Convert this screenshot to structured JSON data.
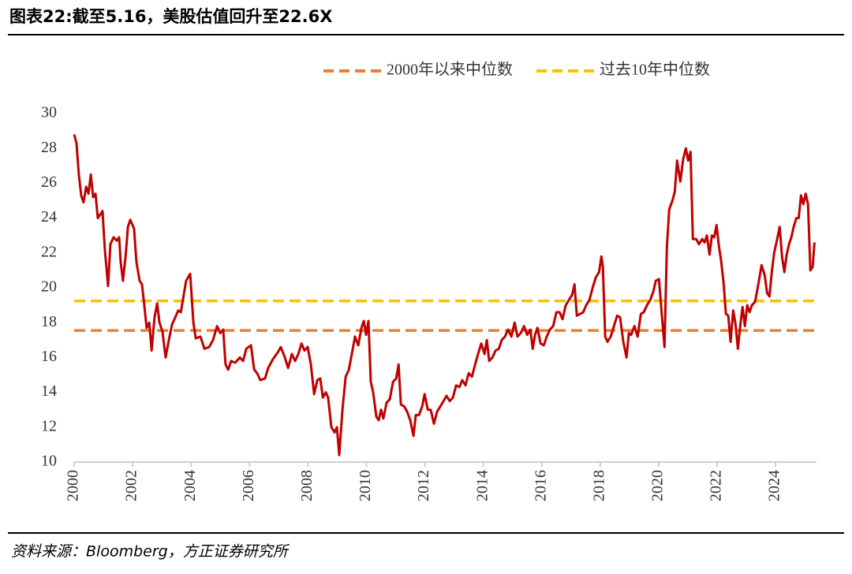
{
  "chart_data": {
    "type": "line",
    "title": "图表22:截至5.16，美股估值回升至22.6X",
    "source": "资料来源：Bloomberg，方正证券研究所",
    "x": [
      2000.0,
      2000.08,
      2000.16,
      2000.24,
      2000.32,
      2000.41,
      2000.49,
      2000.57,
      2000.65,
      2000.73,
      2000.81,
      2000.97,
      2001.05,
      2001.16,
      2001.24,
      2001.35,
      2001.46,
      2001.54,
      2001.59,
      2001.67,
      2001.76,
      2001.84,
      2001.92,
      2002.05,
      2002.13,
      2002.24,
      2002.32,
      2002.4,
      2002.48,
      2002.57,
      2002.65,
      2002.75,
      2002.84,
      2002.92,
      2003.02,
      2003.13,
      2003.24,
      2003.35,
      2003.46,
      2003.56,
      2003.65,
      2003.73,
      2003.83,
      2003.97,
      2004.08,
      2004.16,
      2004.32,
      2004.46,
      2004.62,
      2004.75,
      2004.89,
      2005.0,
      2005.1,
      2005.18,
      2005.27,
      2005.37,
      2005.51,
      2005.67,
      2005.78,
      2005.89,
      2006.05,
      2006.16,
      2006.26,
      2006.37,
      2006.53,
      2006.64,
      2006.8,
      2006.97,
      2007.07,
      2007.21,
      2007.32,
      2007.45,
      2007.56,
      2007.67,
      2007.78,
      2007.88,
      2007.99,
      2008.1,
      2008.21,
      2008.32,
      2008.42,
      2008.51,
      2008.61,
      2008.69,
      2008.8,
      2008.91,
      2008.99,
      2009.07,
      2009.18,
      2009.29,
      2009.4,
      2009.5,
      2009.61,
      2009.72,
      2009.83,
      2009.91,
      2009.99,
      2010.07,
      2010.15,
      2010.23,
      2010.34,
      2010.42,
      2010.5,
      2010.58,
      2010.69,
      2010.8,
      2010.91,
      2011.02,
      2011.1,
      2011.18,
      2011.29,
      2011.39,
      2011.5,
      2011.61,
      2011.69,
      2011.8,
      2011.91,
      2011.99,
      2012.1,
      2012.2,
      2012.31,
      2012.42,
      2012.53,
      2012.64,
      2012.74,
      2012.85,
      2012.96,
      2013.07,
      2013.18,
      2013.28,
      2013.39,
      2013.5,
      2013.61,
      2013.72,
      2013.82,
      2013.93,
      2014.04,
      2014.12,
      2014.2,
      2014.31,
      2014.42,
      2014.53,
      2014.63,
      2014.74,
      2014.85,
      2014.96,
      2015.07,
      2015.17,
      2015.28,
      2015.39,
      2015.5,
      2015.61,
      2015.69,
      2015.77,
      2015.85,
      2015.96,
      2016.07,
      2016.17,
      2016.28,
      2016.39,
      2016.5,
      2016.61,
      2016.71,
      2016.82,
      2016.93,
      2017.04,
      2017.12,
      2017.2,
      2017.31,
      2017.42,
      2017.52,
      2017.63,
      2017.74,
      2017.85,
      2017.96,
      2018.04,
      2018.09,
      2018.17,
      2018.25,
      2018.36,
      2018.47,
      2018.58,
      2018.68,
      2018.79,
      2018.9,
      2018.98,
      2019.06,
      2019.17,
      2019.28,
      2019.39,
      2019.49,
      2019.6,
      2019.71,
      2019.82,
      2019.9,
      2020.01,
      2020.12,
      2020.2,
      2020.28,
      2020.36,
      2020.47,
      2020.55,
      2020.63,
      2020.74,
      2020.84,
      2020.93,
      2021.01,
      2021.09,
      2021.17,
      2021.28,
      2021.38,
      2021.49,
      2021.57,
      2021.65,
      2021.74,
      2021.82,
      2021.9,
      2021.98,
      2022.06,
      2022.14,
      2022.22,
      2022.3,
      2022.38,
      2022.46,
      2022.55,
      2022.63,
      2022.71,
      2022.79,
      2022.87,
      2022.95,
      2023.03,
      2023.11,
      2023.19,
      2023.3,
      2023.41,
      2023.52,
      2023.63,
      2023.71,
      2023.79,
      2023.87,
      2023.95,
      2024.03,
      2024.14,
      2024.22,
      2024.3,
      2024.38,
      2024.46,
      2024.54,
      2024.62,
      2024.71,
      2024.79,
      2024.87,
      2024.95,
      2025.03,
      2025.11,
      2025.19,
      2025.27,
      2025.33
    ],
    "series": [
      {
        "color": "#c00000",
        "values": [
          28.8,
          28.3,
          26.5,
          25.3,
          24.9,
          25.8,
          25.4,
          26.5,
          25.2,
          25.4,
          24.0,
          24.4,
          22.2,
          20.1,
          22.5,
          22.9,
          22.7,
          22.9,
          21.5,
          20.4,
          21.8,
          23.5,
          23.9,
          23.4,
          21.5,
          20.4,
          20.2,
          19.0,
          17.7,
          18.0,
          16.4,
          18.3,
          19.1,
          18.0,
          17.5,
          16.0,
          17.0,
          17.9,
          18.3,
          18.7,
          18.6,
          19.4,
          20.4,
          20.8,
          18.0,
          17.1,
          17.2,
          16.5,
          16.6,
          17.0,
          17.8,
          17.4,
          17.6,
          15.6,
          15.3,
          15.8,
          15.7,
          16.0,
          15.8,
          16.5,
          16.7,
          15.3,
          15.1,
          14.7,
          14.8,
          15.4,
          15.9,
          16.3,
          16.6,
          16.0,
          15.4,
          16.2,
          15.8,
          16.2,
          16.8,
          16.4,
          16.6,
          15.6,
          13.9,
          14.7,
          14.8,
          13.7,
          14.0,
          13.7,
          12.0,
          11.7,
          12.0,
          10.4,
          13.0,
          14.9,
          15.3,
          16.2,
          17.2,
          16.7,
          17.7,
          18.1,
          17.3,
          18.1,
          14.6,
          14.0,
          12.6,
          12.4,
          13.0,
          12.5,
          13.4,
          13.6,
          14.6,
          14.8,
          15.6,
          13.3,
          13.2,
          12.9,
          12.4,
          11.5,
          12.7,
          12.7,
          13.2,
          13.9,
          13.0,
          13.0,
          12.2,
          12.9,
          13.2,
          13.5,
          13.8,
          13.5,
          13.7,
          14.4,
          14.3,
          14.7,
          14.4,
          15.1,
          14.9,
          15.6,
          16.2,
          16.8,
          16.2,
          17.0,
          15.8,
          16.0,
          16.4,
          16.5,
          17.0,
          17.2,
          17.6,
          17.2,
          18.0,
          17.2,
          17.4,
          17.8,
          17.3,
          17.6,
          16.5,
          17.3,
          17.7,
          16.8,
          16.7,
          17.2,
          17.6,
          17.8,
          18.6,
          18.6,
          18.2,
          19.0,
          19.3,
          19.6,
          20.2,
          18.4,
          18.5,
          18.6,
          19.0,
          19.3,
          20.0,
          20.6,
          20.9,
          21.8,
          21.2,
          17.2,
          16.9,
          17.2,
          17.8,
          18.4,
          18.3,
          16.9,
          16.0,
          17.4,
          17.3,
          17.8,
          17.2,
          18.5,
          18.6,
          19.0,
          19.3,
          19.8,
          20.4,
          20.5,
          18.2,
          16.6,
          22.3,
          24.5,
          25.0,
          25.5,
          27.3,
          26.1,
          27.4,
          28.0,
          27.3,
          27.8,
          22.8,
          22.8,
          22.5,
          22.8,
          22.6,
          23.0,
          21.9,
          23.0,
          22.9,
          23.6,
          22.4,
          21.5,
          20.3,
          18.5,
          18.4,
          16.9,
          18.7,
          17.9,
          16.5,
          17.8,
          18.9,
          17.8,
          19.0,
          18.6,
          19.0,
          19.2,
          20.2,
          21.3,
          20.7,
          19.7,
          19.5,
          20.9,
          22.0,
          22.6,
          23.5,
          21.8,
          20.9,
          21.9,
          22.5,
          22.9,
          23.5,
          24.0,
          24.0,
          25.3,
          24.8,
          25.4,
          24.8,
          21.0,
          21.2,
          22.6
        ]
      }
    ],
    "reference_lines": [
      {
        "name": "2000年以来中位数",
        "value": 17.55,
        "color": "#ed7d31"
      },
      {
        "name": "过去10年中位数",
        "value": 19.25,
        "color": "#ffc000"
      }
    ],
    "xlim": [
      2000,
      2025.4
    ],
    "xticks": [
      2000,
      2002,
      2004,
      2006,
      2008,
      2010,
      2012,
      2014,
      2016,
      2018,
      2020,
      2022,
      2024
    ],
    "ylim": [
      10,
      30
    ],
    "yticks": [
      10,
      12,
      14,
      16,
      18,
      20,
      22,
      24,
      26,
      28,
      30
    ]
  }
}
